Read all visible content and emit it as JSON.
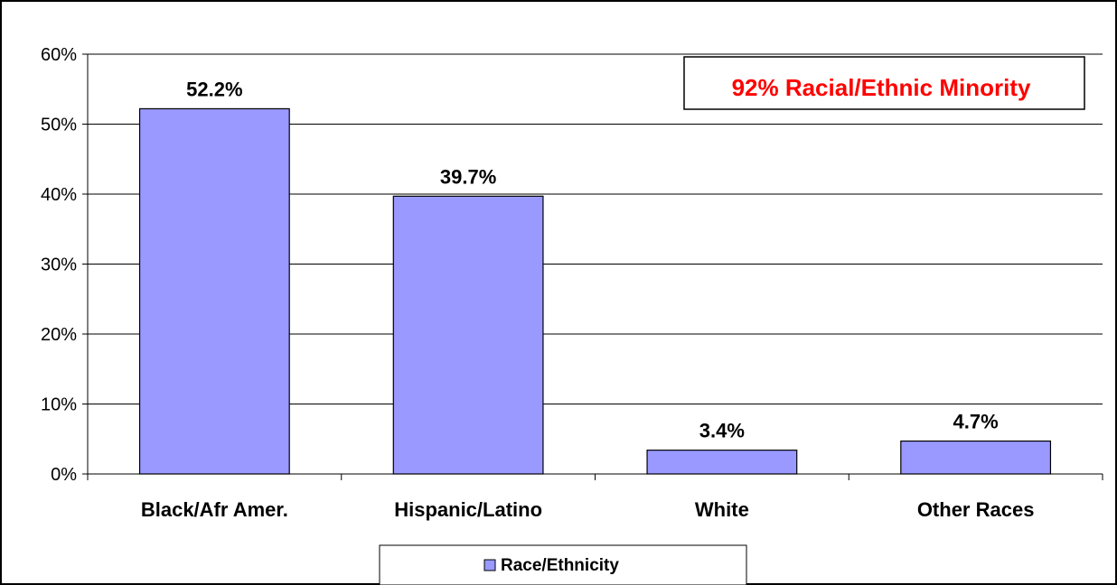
{
  "chart_data": {
    "type": "bar",
    "categories": [
      "Black/Afr Amer.",
      "Hispanic/Latino",
      "White",
      "Other Races"
    ],
    "series": [
      {
        "name": "Race/Ethnicity",
        "values": [
          52.2,
          39.7,
          3.4,
          4.7
        ]
      }
    ],
    "data_labels": [
      "52.2%",
      "39.7%",
      "3.4%",
      "4.7%"
    ],
    "y_ticks": [
      "0%",
      "10%",
      "20%",
      "30%",
      "40%",
      "50%",
      "60%"
    ],
    "ylim": [
      0,
      60
    ],
    "grid": true,
    "legend_position": "bottom",
    "annotation": "92% Racial/Ethnic Minority",
    "colors": {
      "bar_fill": "#9999ff",
      "bar_stroke": "#000000",
      "annotation_text": "#ff0000",
      "grid": "#000000"
    }
  }
}
